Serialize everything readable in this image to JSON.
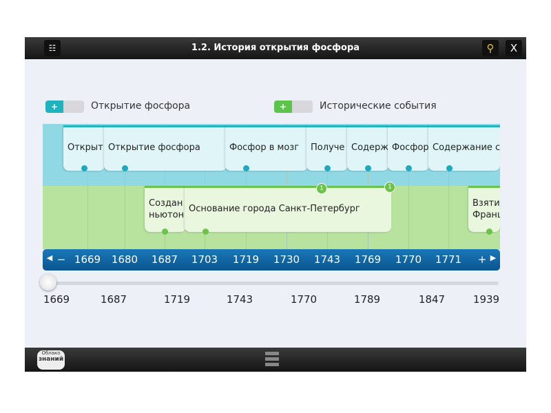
{
  "window": {
    "title": "1.2. История открытия фосфора",
    "menu_icon": "grid-menu-icon",
    "search_icon": "search-icon",
    "close_label": "X"
  },
  "filters": [
    {
      "label": "Открытие фосфора",
      "color": "#1fb3c0",
      "toggle": "+"
    },
    {
      "label": "Исторические события",
      "color": "#5cc44a",
      "toggle": "+"
    }
  ],
  "phosphorus_events": [
    "Открыт",
    "Открытие фосфора",
    "Фосфор в мозг",
    "Получе",
    "Содерж",
    "Фосфор",
    "Содержание с"
  ],
  "history_events": [
    {
      "line1": "Создан",
      "line2": "ньютон"
    },
    {
      "line1": "Основание города Санкт-Петербург",
      "line2": ""
    },
    {
      "line1": "Взяти",
      "line2": "Франц"
    }
  ],
  "badge": "1",
  "axis": {
    "prev": "◀",
    "minus": "−",
    "plus": "+",
    "next": "▶",
    "years": [
      "1669",
      "1680",
      "1687",
      "1703",
      "1719",
      "1730",
      "1743",
      "1769",
      "1770",
      "1771"
    ]
  },
  "slider": {
    "value": "1669",
    "labels": [
      "1669",
      "1687",
      "1719",
      "1743",
      "1770",
      "1789",
      "1847",
      "1939"
    ]
  },
  "footer": {
    "logo_line1": "Облако",
    "logo_line2": "знаний"
  }
}
